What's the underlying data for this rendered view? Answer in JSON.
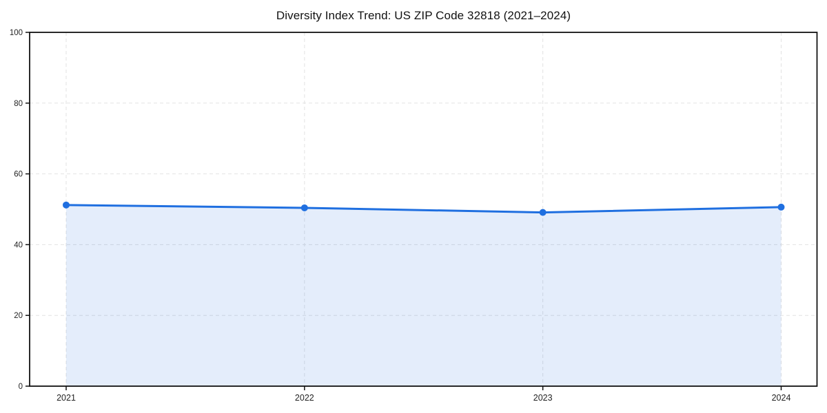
{
  "chart": {
    "title": "Diversity Index Trend: US ZIP Code 32818 (2021–2024)"
  },
  "chart_data": {
    "type": "area",
    "title": "Diversity Index Trend: US ZIP Code 32818 (2021–2024)",
    "categories": [
      "2021",
      "2022",
      "2023",
      "2024"
    ],
    "series": [
      {
        "name": "Diversity Index",
        "values": [
          51.2,
          50.4,
          49.1,
          50.6
        ]
      }
    ],
    "xlabel": "",
    "ylabel": "",
    "ylim": [
      0,
      100
    ],
    "yticks": [
      0,
      20,
      40,
      60,
      80,
      100
    ],
    "grid": "dashed-both-axes",
    "legend": "none",
    "colors": {
      "line": "#1f6fe0",
      "marker": "#1f6fe0",
      "fill": "rgba(31, 111, 224, 0.12)",
      "grid": "#e2e2e2",
      "spine": "#111111",
      "tick": "#111111",
      "tick_text": "#222222",
      "background": "#ffffff"
    }
  }
}
